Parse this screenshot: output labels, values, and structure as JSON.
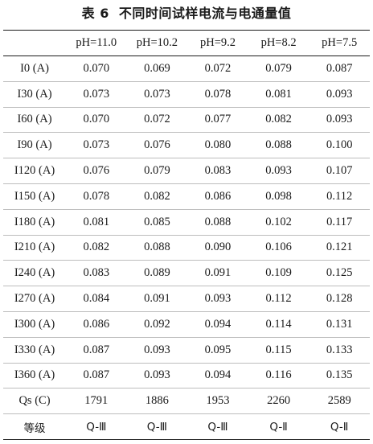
{
  "caption": {
    "number": "表 6",
    "title": "不同时间试样电流与电通量值"
  },
  "table": {
    "header": [
      "",
      "pH=11.0",
      "pH=10.2",
      "pH=9.2",
      "pH=8.2",
      "pH=7.5"
    ],
    "rows": [
      [
        "I0 (A)",
        "0.070",
        "0.069",
        "0.072",
        "0.079",
        "0.087"
      ],
      [
        "I30 (A)",
        "0.073",
        "0.073",
        "0.078",
        "0.081",
        "0.093"
      ],
      [
        "I60 (A)",
        "0.070",
        "0.072",
        "0.077",
        "0.082",
        "0.093"
      ],
      [
        "I90 (A)",
        "0.073",
        "0.076",
        "0.080",
        "0.088",
        "0.100"
      ],
      [
        "I120 (A)",
        "0.076",
        "0.079",
        "0.083",
        "0.093",
        "0.107"
      ],
      [
        "I150 (A)",
        "0.078",
        "0.082",
        "0.086",
        "0.098",
        "0.112"
      ],
      [
        "I180 (A)",
        "0.081",
        "0.085",
        "0.088",
        "0.102",
        "0.117"
      ],
      [
        "I210 (A)",
        "0.082",
        "0.088",
        "0.090",
        "0.106",
        "0.121"
      ],
      [
        "I240 (A)",
        "0.083",
        "0.089",
        "0.091",
        "0.109",
        "0.125"
      ],
      [
        "I270 (A)",
        "0.084",
        "0.091",
        "0.093",
        "0.112",
        "0.128"
      ],
      [
        "I300 (A)",
        "0.086",
        "0.092",
        "0.094",
        "0.114",
        "0.131"
      ],
      [
        "I330 (A)",
        "0.087",
        "0.093",
        "0.095",
        "0.115",
        "0.133"
      ],
      [
        "I360 (A)",
        "0.087",
        "0.093",
        "0.094",
        "0.116",
        "0.135"
      ],
      [
        "Qs (C)",
        "1791",
        "1886",
        "1953",
        "2260",
        "2589"
      ],
      [
        "等级",
        "Q-Ⅲ",
        "Q-Ⅲ",
        "Q-Ⅲ",
        "Q-Ⅱ",
        "Q-Ⅱ"
      ]
    ]
  }
}
